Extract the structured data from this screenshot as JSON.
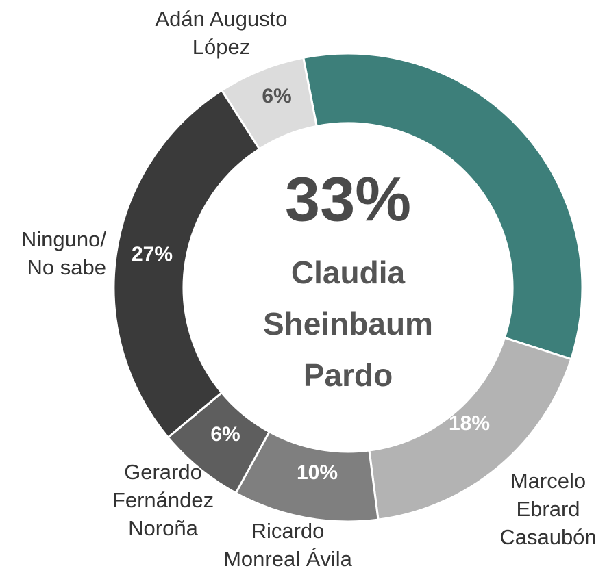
{
  "chart_data": {
    "type": "donut",
    "categories": [
      "Claudia\nSheinbaum\nPardo",
      "Marcelo\nEbrard\nCasaubón",
      "Ricardo\nMonreal Ávila",
      "Gerardo\nFernández\nNoroña",
      "Ninguno/\nNo sabe",
      "Adán Augusto\nLópez"
    ],
    "values": [
      33,
      18,
      10,
      6,
      27,
      6
    ],
    "value_labels": [
      "33%",
      "18%",
      "10%",
      "6%",
      "27%",
      "6%"
    ],
    "colors": [
      "#3d7f7a",
      "#b3b3b3",
      "#7f7f7f",
      "#5e5e5e",
      "#3a3a3a",
      "#dcdcdc"
    ]
  }
}
